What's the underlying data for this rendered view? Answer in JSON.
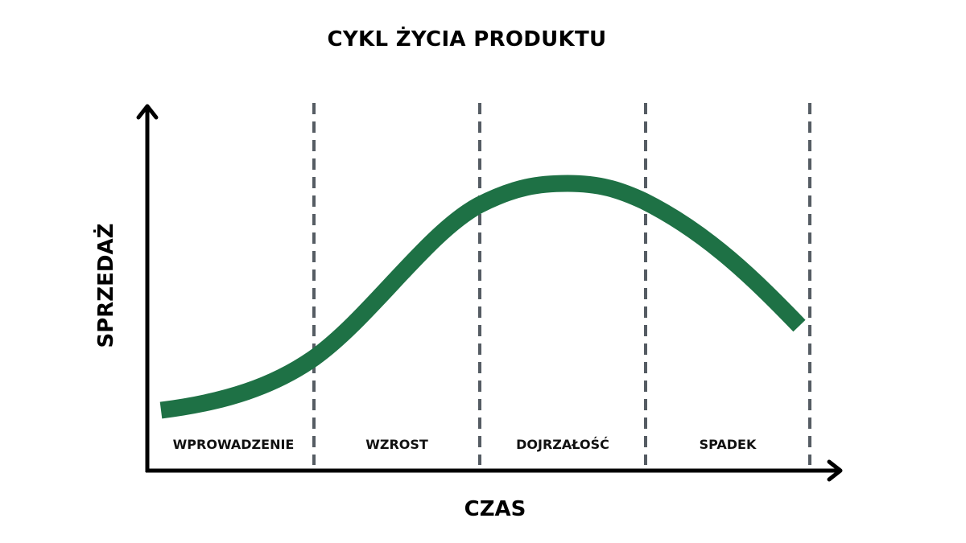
{
  "title": "CYKL ŻYCIA PRODUKTU",
  "axes": {
    "x_label": "CZAS",
    "y_label": "SPRZEDAŻ"
  },
  "stages": [
    {
      "label": "WPROWADZENIE"
    },
    {
      "label": "WZROST"
    },
    {
      "label": "DOJRZAŁOŚĆ"
    },
    {
      "label": "SPADEK"
    }
  ],
  "colors": {
    "curve": "#1e7145",
    "divider": "#555c63",
    "axis": "#000000"
  }
}
